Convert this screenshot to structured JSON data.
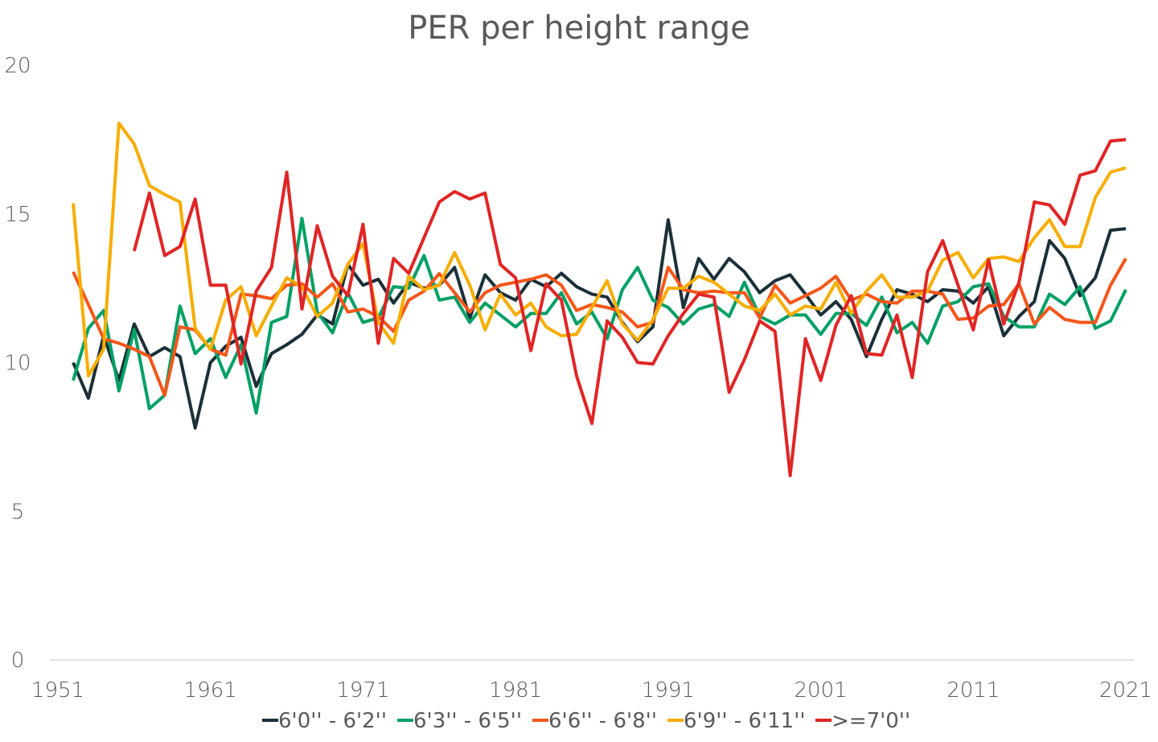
{
  "chart_data": {
    "type": "line",
    "title": "PER per height range",
    "xlabel": "",
    "ylabel": "",
    "xlim": [
      1951,
      2021
    ],
    "ylim": [
      0,
      20
    ],
    "x_ticks": [
      "1951",
      "1961",
      "1971",
      "1981",
      "1991",
      "2001",
      "2011",
      "2021"
    ],
    "y_ticks": [
      "0",
      "5",
      "10",
      "15",
      "20"
    ],
    "grid": false,
    "legend_position": "bottom",
    "x_start": 1952,
    "series": [
      {
        "name": "6'0'' - 6'2''",
        "color": "#1b3039",
        "start": 1952,
        "values": [
          10.0,
          8.8,
          10.9,
          9.4,
          11.3,
          10.2,
          10.5,
          10.2,
          7.8,
          10.0,
          10.55,
          10.85,
          9.2,
          10.3,
          10.6,
          10.95,
          11.6,
          11.3,
          13.3,
          12.6,
          12.8,
          12.0,
          12.7,
          12.5,
          12.6,
          13.2,
          11.5,
          12.95,
          12.35,
          12.1,
          12.8,
          12.55,
          13.0,
          12.55,
          12.3,
          12.2,
          11.35,
          10.7,
          11.2,
          14.8,
          11.85,
          13.5,
          12.8,
          13.5,
          13.05,
          12.35,
          12.75,
          12.95,
          12.3,
          11.6,
          12.05,
          11.45,
          10.2,
          11.45,
          12.45,
          12.3,
          12.05,
          12.45,
          12.4,
          12.0,
          12.55,
          10.9,
          11.55,
          12.05,
          14.1,
          13.5,
          12.25,
          12.85,
          14.45,
          14.5
        ]
      },
      {
        "name": "6'3'' - 6'5''",
        "color": "#00a065",
        "start": 1952,
        "values": [
          9.4,
          11.15,
          11.75,
          9.05,
          11.1,
          8.45,
          8.9,
          11.9,
          10.3,
          10.8,
          9.5,
          10.6,
          8.3,
          11.35,
          11.55,
          14.85,
          11.7,
          11.0,
          12.35,
          11.35,
          11.5,
          12.55,
          12.5,
          13.6,
          12.1,
          12.2,
          11.35,
          12.0,
          11.6,
          11.2,
          11.65,
          11.65,
          12.35,
          11.3,
          11.7,
          10.8,
          12.45,
          13.2,
          12.1,
          11.85,
          11.3,
          11.8,
          11.95,
          11.55,
          12.7,
          11.55,
          11.3,
          11.6,
          11.6,
          10.95,
          11.65,
          11.65,
          11.25,
          12.2,
          11.0,
          11.35,
          10.65,
          11.9,
          12.05,
          12.55,
          12.65,
          11.55,
          11.2,
          11.2,
          12.3,
          11.95,
          12.55,
          11.15,
          11.4,
          12.45
        ]
      },
      {
        "name": "6'6'' - 6'8''",
        "color": "#f4561a",
        "start": 1952,
        "values": [
          13.05,
          11.95,
          10.8,
          10.65,
          10.45,
          10.2,
          8.9,
          11.2,
          11.1,
          10.45,
          10.25,
          12.3,
          12.25,
          12.15,
          12.6,
          12.65,
          12.2,
          12.65,
          11.7,
          11.8,
          11.55,
          11.05,
          12.1,
          12.4,
          12.99,
          12.35,
          11.7,
          12.35,
          12.6,
          12.7,
          12.8,
          12.95,
          12.6,
          11.75,
          11.95,
          11.85,
          11.7,
          11.2,
          11.35,
          13.2,
          12.45,
          12.35,
          12.4,
          12.35,
          12.35,
          11.5,
          12.6,
          12.0,
          12.25,
          12.5,
          12.9,
          12.1,
          12.3,
          12.05,
          12.0,
          12.4,
          12.4,
          12.3,
          11.45,
          11.5,
          11.9,
          11.95,
          12.65,
          11.3,
          11.85,
          11.45,
          11.35,
          11.35,
          12.6,
          13.5
        ]
      },
      {
        "name": "6'9'' - 6'11''",
        "color": "#f7ad00",
        "start": 1952,
        "values": [
          15.35,
          9.55,
          10.45,
          18.05,
          17.35,
          15.95,
          15.65,
          15.4,
          11.15,
          10.45,
          12.1,
          12.55,
          10.9,
          11.9,
          12.85,
          12.55,
          11.55,
          12.0,
          13.3,
          14.0,
          11.35,
          10.65,
          12.9,
          12.45,
          12.6,
          13.7,
          12.6,
          11.1,
          12.3,
          11.6,
          12.0,
          11.2,
          10.9,
          10.95,
          11.85,
          12.75,
          11.3,
          10.75,
          11.45,
          12.5,
          12.5,
          12.9,
          12.7,
          12.3,
          11.9,
          11.75,
          12.3,
          11.6,
          11.9,
          11.8,
          12.7,
          11.65,
          12.4,
          12.95,
          12.2,
          12.2,
          12.4,
          13.45,
          13.7,
          12.85,
          13.5,
          13.55,
          13.4,
          14.2,
          14.8,
          13.9,
          13.9,
          15.55,
          16.4,
          16.55
        ]
      },
      {
        "name": ">=7'0''",
        "color": "#e02525",
        "start": 1956,
        "values": [
          13.75,
          15.7,
          13.6,
          13.9,
          15.5,
          12.6,
          12.6,
          9.95,
          12.4,
          13.2,
          16.4,
          11.8,
          14.6,
          12.9,
          12.25,
          14.65,
          10.65,
          13.5,
          13.0,
          14.2,
          15.4,
          15.75,
          15.5,
          15.7,
          13.3,
          12.85,
          10.4,
          12.65,
          12.1,
          9.55,
          7.95,
          11.4,
          10.85,
          10.0,
          9.95,
          10.9,
          11.65,
          12.3,
          12.2,
          9.0,
          10.1,
          11.4,
          11.05,
          6.2,
          10.8,
          9.4,
          11.25,
          12.25,
          10.3,
          10.25,
          11.6,
          9.5,
          13.05,
          14.1,
          12.6,
          11.1,
          13.45,
          11.3,
          12.7,
          15.4,
          15.3,
          14.65,
          16.3,
          16.45,
          17.45,
          17.5
        ]
      }
    ]
  }
}
